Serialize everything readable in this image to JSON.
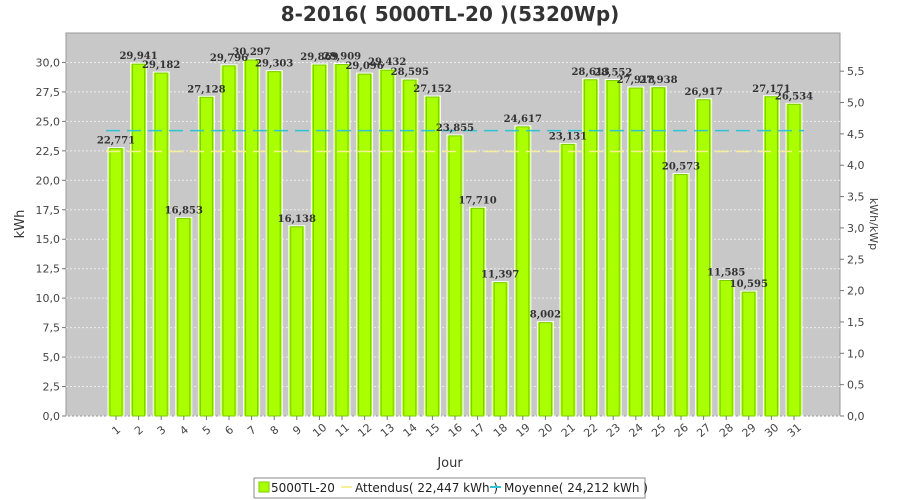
{
  "chart_data": {
    "type": "bar",
    "title": "8-2016( 5000TL-20 )(5320Wp)",
    "xlabel": "Jour",
    "ylabel": "kWh",
    "y2label": "kWh/kWp",
    "ylim": [
      0,
      32.5
    ],
    "y2lim": [
      0,
      6.109
    ],
    "yticks": [
      "0,0",
      "2,5",
      "5,0",
      "7,5",
      "10,0",
      "12,5",
      "15,0",
      "17,5",
      "20,0",
      "22,5",
      "25,0",
      "27,5",
      "30,0"
    ],
    "y2ticks": [
      "0,0",
      "0,5",
      "1,0",
      "1,5",
      "2,0",
      "2,5",
      "3,0",
      "3,5",
      "4,0",
      "4,5",
      "5,0",
      "5,5"
    ],
    "categories": [
      "1",
      "2",
      "3",
      "4",
      "5",
      "6",
      "7",
      "8",
      "9",
      "10",
      "11",
      "12",
      "13",
      "14",
      "15",
      "16",
      "17",
      "18",
      "19",
      "20",
      "21",
      "22",
      "23",
      "24",
      "25",
      "26",
      "27",
      "28",
      "29",
      "30",
      "31"
    ],
    "series": [
      {
        "name": "5000TL-20",
        "values": [
          22.771,
          29.941,
          29.182,
          16.853,
          27.128,
          29.796,
          30.297,
          29.303,
          16.138,
          29.869,
          29.909,
          29.096,
          29.432,
          28.595,
          27.152,
          23.855,
          17.71,
          11.397,
          24.617,
          8.002,
          23.131,
          28.613,
          28.552,
          27.918,
          27.938,
          20.573,
          26.917,
          11.585,
          10.595,
          27.171,
          26.534
        ],
        "labels": [
          "22,771",
          "29,941",
          "29,182",
          "16,853",
          "27,128",
          "29,796",
          "30,297",
          "29,303",
          "16,138",
          "29,869",
          "29,909",
          "29,096",
          "29,432",
          "28,595",
          "27,152",
          "23,855",
          "17,710",
          "11,397",
          "24,617",
          "8,002",
          "23,131",
          "28,613",
          "28,552",
          "27,918",
          "27,938",
          "20,573",
          "26,917",
          "11,585",
          "10,595",
          "27,171",
          "26,534"
        ]
      }
    ],
    "reference_lines": [
      {
        "name": "Attendus( 22,447 kWh )",
        "value": 22.447,
        "color": "#f5ee9a",
        "style": "dashed"
      },
      {
        "name": "Moyenne( 24,212 kWh )",
        "value": 24.212,
        "color": "#2ec4d6",
        "style": "dashed"
      }
    ],
    "legend_position": "bottom-center",
    "grid": true,
    "colors": {
      "bar": "#aaff00",
      "bar_edge": "#7acc00",
      "plot_bg": "#c8c8c8",
      "grid": "#e8e8e8"
    }
  }
}
